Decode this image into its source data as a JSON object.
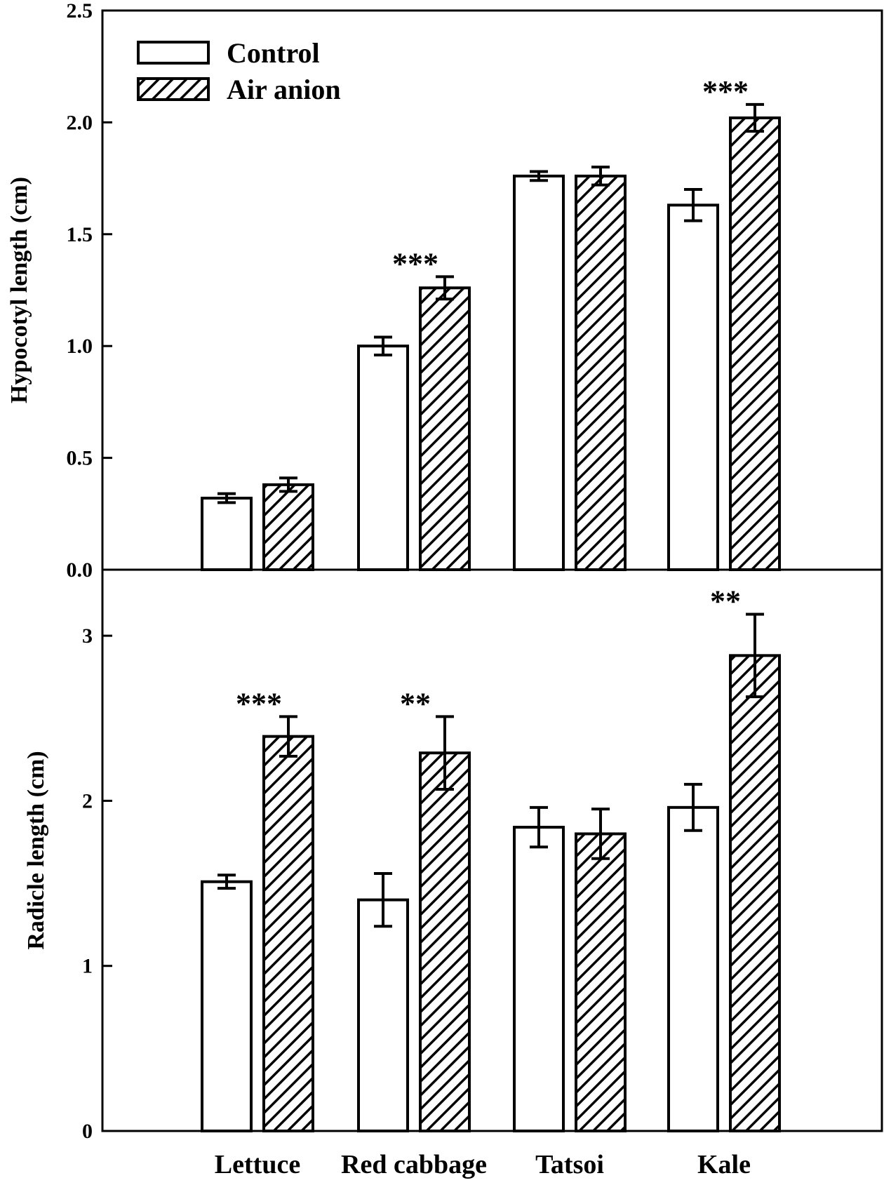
{
  "chart_data": [
    {
      "type": "bar",
      "panel": "top",
      "categories": [
        "Lettuce",
        "Red cabbage",
        "Tatsoi",
        "Kale"
      ],
      "ylabel": "Hypocotyl length (cm)",
      "ylim": [
        0,
        2.5
      ],
      "yticks": [
        "0.0",
        "0.5",
        "1.0",
        "1.5",
        "2.0",
        "2.5"
      ],
      "series": [
        {
          "name": "Control",
          "values": [
            0.32,
            1.0,
            1.76,
            1.63
          ],
          "errors": [
            0.02,
            0.04,
            0.02,
            0.07
          ]
        },
        {
          "name": "Air anion",
          "values": [
            0.38,
            1.26,
            1.76,
            2.02
          ],
          "errors": [
            0.03,
            0.05,
            0.04,
            0.06
          ]
        }
      ],
      "significance": [
        "",
        "***",
        "",
        "***"
      ],
      "legend": {
        "position": "top-left"
      },
      "grid": false
    },
    {
      "type": "bar",
      "panel": "bottom",
      "categories": [
        "Lettuce",
        "Red cabbage",
        "Tatsoi",
        "Kale"
      ],
      "ylabel": "Radicle length (cm)",
      "ylim": [
        0,
        3.4
      ],
      "yticks": [
        "0",
        "1",
        "2",
        "3"
      ],
      "series": [
        {
          "name": "Control",
          "values": [
            1.51,
            1.4,
            1.84,
            1.96
          ],
          "errors": [
            0.04,
            0.16,
            0.12,
            0.14
          ]
        },
        {
          "name": "Air anion",
          "values": [
            2.39,
            2.29,
            1.8,
            2.88
          ],
          "errors": [
            0.12,
            0.22,
            0.15,
            0.25
          ]
        }
      ],
      "significance": [
        "***",
        "**",
        "",
        "**"
      ],
      "grid": false
    }
  ]
}
